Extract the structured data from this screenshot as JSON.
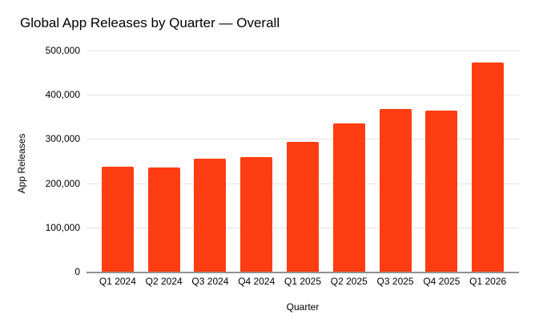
{
  "chart_data": {
    "type": "bar",
    "title": "Global App Releases by Quarter — Overall",
    "xlabel": "Quarter",
    "ylabel": "App Releases",
    "categories": [
      "Q1 2024",
      "Q2 2024",
      "Q3 2024",
      "Q4 2024",
      "Q1 2025",
      "Q2 2025",
      "Q3 2025",
      "Q4 2025",
      "Q1 2026"
    ],
    "values": [
      238000,
      235000,
      256000,
      259000,
      294000,
      335000,
      368000,
      364000,
      472000
    ],
    "ylim": [
      0,
      500000
    ],
    "yticks": [
      {
        "v": 0,
        "label": "0"
      },
      {
        "v": 100000,
        "label": "100,000"
      },
      {
        "v": 200000,
        "label": "200,000"
      },
      {
        "v": 300000,
        "label": "300,000"
      },
      {
        "v": 400000,
        "label": "400,000"
      },
      {
        "v": 500000,
        "label": "500,000"
      }
    ],
    "grid": true,
    "legend": "none",
    "bar_color": "#ff3d12",
    "gridline_color": "#e2e2e2",
    "axis_line_color": "#909090",
    "text_color": "#000000",
    "background": "#ffffff"
  }
}
